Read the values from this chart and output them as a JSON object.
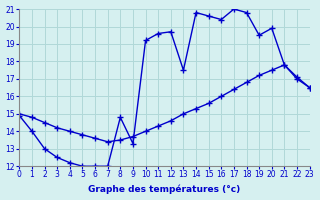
{
  "title": "Graphe des températures (°c)",
  "bg_color": "#d6f0f0",
  "line_color": "#0000cc",
  "grid_color": "#b0d8d8",
  "x_min": 0,
  "x_max": 23,
  "y_min": 12,
  "y_max": 21,
  "curve1_x": [
    0,
    1,
    2,
    3,
    4,
    5,
    6,
    7,
    8,
    9,
    10,
    11,
    12,
    13,
    14,
    15,
    16,
    17,
    18,
    19,
    20,
    21,
    22,
    23
  ],
  "curve1_y": [
    14.9,
    14.0,
    13.0,
    12.5,
    12.2,
    12.0,
    12.0,
    12.0,
    14.8,
    13.3,
    19.2,
    19.6,
    19.7,
    17.5,
    20.8,
    20.6,
    20.4,
    21.0,
    20.8,
    19.5,
    19.9,
    17.8,
    17.1,
    16.5
  ],
  "curve2_x": [
    0,
    1,
    2,
    3,
    4,
    5,
    6,
    7,
    8,
    9,
    10,
    11,
    12,
    13,
    14,
    15,
    16,
    17,
    18,
    19,
    20,
    21,
    22,
    23
  ],
  "curve2_y": [
    15.0,
    14.8,
    14.5,
    14.2,
    14.0,
    13.8,
    13.6,
    13.4,
    13.5,
    13.7,
    14.0,
    14.3,
    14.6,
    15.0,
    15.3,
    15.6,
    16.0,
    16.4,
    16.8,
    17.2,
    17.5,
    17.8,
    17.0,
    16.5
  ]
}
